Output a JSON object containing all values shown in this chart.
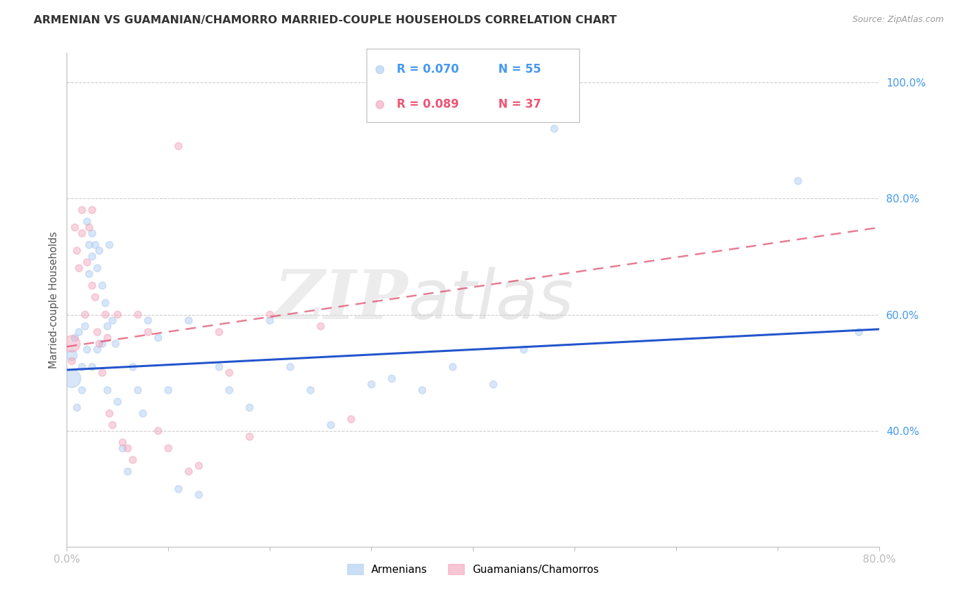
{
  "title": "ARMENIAN VS GUAMANIAN/CHAMORRO MARRIED-COUPLE HOUSEHOLDS CORRELATION CHART",
  "source": "Source: ZipAtlas.com",
  "ylabel": "Married-couple Households",
  "xmin": 0.0,
  "xmax": 0.8,
  "ymin": 0.2,
  "ymax": 1.05,
  "yticks": [
    0.4,
    0.6,
    0.8,
    1.0
  ],
  "ytick_labels": [
    "40.0%",
    "60.0%",
    "80.0%",
    "100.0%"
  ],
  "xticks": [
    0.0,
    0.1,
    0.2,
    0.3,
    0.4,
    0.5,
    0.6,
    0.7,
    0.8
  ],
  "xtick_labels": [
    "0.0%",
    "",
    "",
    "",
    "",
    "",
    "",
    "",
    "80.0%"
  ],
  "legend_r_armenian": "R = 0.070",
  "legend_n_armenian": "N = 55",
  "legend_r_guamanian": "R = 0.089",
  "legend_n_guamanian": "N = 37",
  "legend_label_armenian": "Armenians",
  "legend_label_guamanian": "Guamanians/Chamorros",
  "blue_color": "#A8C8F0",
  "pink_color": "#F0A0B8",
  "blue_line_color": "#2255CC",
  "pink_line_color": "#DD4466",
  "grid_color": "#CCCCCC",
  "watermark_zip": "ZIP",
  "watermark_atlas": "atlas",
  "blue_scatter_x": [
    0.005,
    0.005,
    0.008,
    0.01,
    0.012,
    0.015,
    0.015,
    0.018,
    0.02,
    0.02,
    0.022,
    0.022,
    0.025,
    0.025,
    0.025,
    0.028,
    0.03,
    0.03,
    0.032,
    0.035,
    0.035,
    0.038,
    0.04,
    0.04,
    0.042,
    0.045,
    0.048,
    0.05,
    0.055,
    0.06,
    0.065,
    0.07,
    0.075,
    0.08,
    0.09,
    0.1,
    0.11,
    0.12,
    0.13,
    0.15,
    0.16,
    0.18,
    0.2,
    0.22,
    0.24,
    0.26,
    0.3,
    0.32,
    0.35,
    0.38,
    0.42,
    0.45,
    0.48,
    0.72,
    0.78
  ],
  "blue_scatter_y": [
    0.53,
    0.49,
    0.56,
    0.44,
    0.57,
    0.51,
    0.47,
    0.58,
    0.76,
    0.54,
    0.72,
    0.67,
    0.74,
    0.7,
    0.51,
    0.72,
    0.68,
    0.54,
    0.71,
    0.65,
    0.55,
    0.62,
    0.58,
    0.47,
    0.72,
    0.59,
    0.55,
    0.45,
    0.37,
    0.33,
    0.51,
    0.47,
    0.43,
    0.59,
    0.56,
    0.47,
    0.3,
    0.59,
    0.29,
    0.51,
    0.47,
    0.44,
    0.59,
    0.51,
    0.47,
    0.41,
    0.48,
    0.49,
    0.47,
    0.51,
    0.48,
    0.54,
    0.92,
    0.83,
    0.57
  ],
  "blue_scatter_sizes": [
    120,
    350,
    55,
    55,
    55,
    55,
    55,
    55,
    55,
    55,
    55,
    55,
    55,
    55,
    55,
    55,
    55,
    55,
    55,
    55,
    55,
    55,
    55,
    55,
    55,
    55,
    55,
    55,
    55,
    55,
    55,
    55,
    55,
    55,
    55,
    55,
    55,
    55,
    55,
    55,
    55,
    55,
    55,
    55,
    55,
    55,
    55,
    55,
    55,
    55,
    55,
    55,
    55,
    55,
    55
  ],
  "pink_scatter_x": [
    0.005,
    0.005,
    0.008,
    0.01,
    0.012,
    0.015,
    0.015,
    0.018,
    0.02,
    0.022,
    0.025,
    0.025,
    0.028,
    0.03,
    0.032,
    0.035,
    0.038,
    0.04,
    0.042,
    0.045,
    0.05,
    0.055,
    0.06,
    0.065,
    0.07,
    0.08,
    0.09,
    0.1,
    0.11,
    0.12,
    0.13,
    0.15,
    0.16,
    0.18,
    0.2,
    0.25,
    0.28
  ],
  "pink_scatter_y": [
    0.55,
    0.52,
    0.75,
    0.71,
    0.68,
    0.78,
    0.74,
    0.6,
    0.69,
    0.75,
    0.65,
    0.78,
    0.63,
    0.57,
    0.55,
    0.5,
    0.6,
    0.56,
    0.43,
    0.41,
    0.6,
    0.38,
    0.37,
    0.35,
    0.6,
    0.57,
    0.4,
    0.37,
    0.89,
    0.33,
    0.34,
    0.57,
    0.5,
    0.39,
    0.6,
    0.58,
    0.42
  ],
  "pink_scatter_sizes": [
    300,
    55,
    55,
    55,
    55,
    55,
    55,
    55,
    55,
    55,
    55,
    55,
    55,
    55,
    55,
    55,
    55,
    55,
    55,
    55,
    55,
    55,
    55,
    55,
    55,
    55,
    55,
    55,
    55,
    55,
    55,
    55,
    55,
    55,
    55,
    55,
    55
  ],
  "blue_trend_x": [
    0.0,
    0.8
  ],
  "blue_trend_y": [
    0.505,
    0.575
  ],
  "pink_trend_x": [
    0.0,
    0.8
  ],
  "pink_trend_y": [
    0.545,
    0.75
  ]
}
